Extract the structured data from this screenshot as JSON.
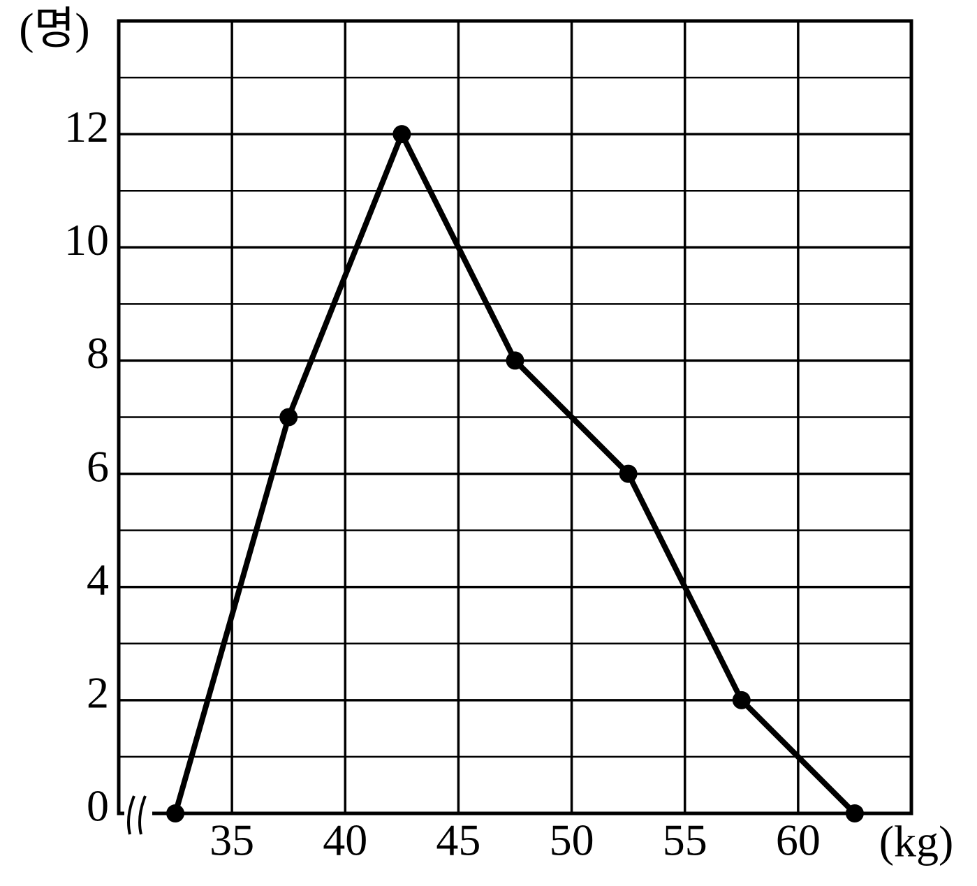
{
  "chart_data": {
    "type": "line",
    "y_label": "(명)",
    "x_label": "(kg)",
    "x": [
      32.5,
      37.5,
      42.5,
      47.5,
      52.5,
      57.5,
      62.5
    ],
    "series": [
      {
        "color": "#000000",
        "values": [
          0,
          7,
          12,
          8,
          6,
          2,
          0
        ]
      }
    ],
    "xlim": [
      30,
      65
    ],
    "xticks": [
      35,
      40,
      45,
      50,
      55,
      60
    ],
    "ylim": [
      0,
      14
    ],
    "yticks": [
      0,
      2,
      4,
      6,
      8,
      10,
      12
    ],
    "yminor": [
      1,
      3,
      5,
      7,
      9,
      11,
      13
    ],
    "grid": true
  }
}
